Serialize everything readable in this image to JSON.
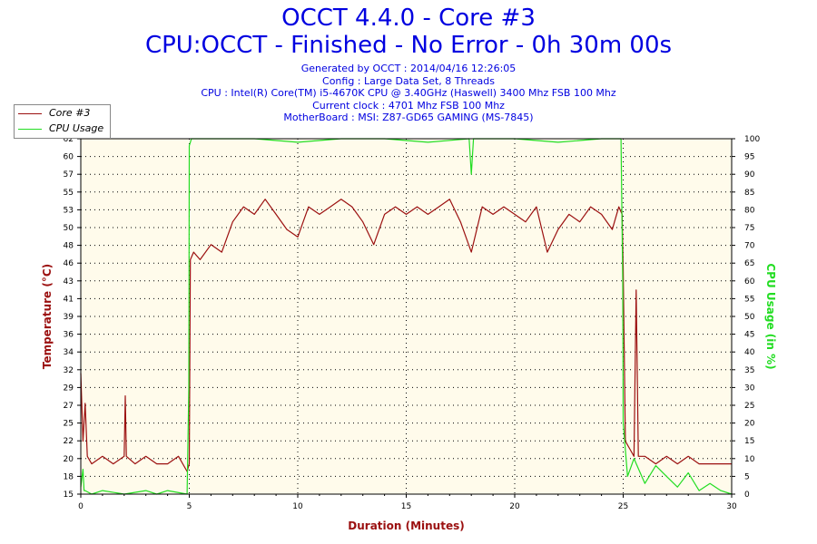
{
  "header": {
    "title_line1": "OCCT 4.4.0 - Core #3",
    "title_line2": "CPU:OCCT - Finished - No Error - 0h 30m 00s",
    "generated": "Generated by OCCT : 2014/04/16 12:26:05",
    "config": "Config : Large Data Set, 8 Threads",
    "cpu": "CPU : Intel(R) Core(TM) i5-4670K CPU @ 3.40GHz (Haswell) 3400 Mhz FSB 100 Mhz",
    "clock": "Current clock : 4701 Mhz FSB 100 Mhz",
    "motherboard": "MotherBoard : MSI: Z87-GD65 GAMING (MS-7845)"
  },
  "chart_data": {
    "type": "line",
    "xlabel": "Duration (Minutes)",
    "ylabel": "Temperature (°C)",
    "y2label": "CPU Usage (in %)",
    "xlim": [
      0,
      30
    ],
    "ylim": [
      15,
      62
    ],
    "y2lim": [
      0,
      100
    ],
    "grid": true,
    "legend_position": "top-left",
    "x_ticks": [
      "0",
      "5",
      "10",
      "15",
      "20",
      "25",
      "30"
    ],
    "y_ticks": [
      "15",
      "18",
      "20",
      "22",
      "25",
      "27",
      "29",
      "32",
      "34",
      "36",
      "39",
      "41",
      "43",
      "46",
      "48",
      "50",
      "53",
      "55",
      "57",
      "60",
      "62"
    ],
    "y2_ticks": [
      "0",
      "5",
      "10",
      "15",
      "20",
      "25",
      "30",
      "35",
      "40",
      "45",
      "50",
      "55",
      "60",
      "65",
      "70",
      "75",
      "80",
      "85",
      "90",
      "95",
      "100"
    ],
    "colors": {
      "temperature": "#9b1010",
      "usage": "#22dd22",
      "plot_bg": "#fffbeb"
    },
    "series": [
      {
        "name": "Core #3",
        "axis": "left",
        "x": [
          0,
          0.1,
          0.2,
          0.3,
          0.5,
          1,
          1.5,
          2,
          2.05,
          2.1,
          2.5,
          3,
          3.5,
          4,
          4.5,
          4.9,
          5.0,
          5.05,
          5.2,
          5.5,
          6,
          6.5,
          7,
          7.5,
          8,
          8.5,
          9,
          9.5,
          10,
          10.5,
          11,
          11.5,
          12,
          12.5,
          13,
          13.5,
          14,
          14.5,
          15,
          15.5,
          16,
          16.5,
          17,
          17.5,
          18,
          18.5,
          19,
          19.5,
          20,
          20.5,
          21,
          21.5,
          22,
          22.5,
          23,
          23.5,
          24,
          24.5,
          24.8,
          24.95,
          25.0,
          25.1,
          25.3,
          25.5,
          25.6,
          25.7,
          26,
          26.5,
          27,
          27.5,
          28,
          28.5,
          29,
          29.5,
          30
        ],
        "values": [
          31,
          22,
          27,
          20,
          19,
          20,
          19,
          20,
          28,
          20,
          19,
          20,
          19,
          19,
          20,
          18,
          19,
          46,
          47,
          46,
          48,
          47,
          51,
          53,
          52,
          54,
          52,
          50,
          49,
          53,
          52,
          53,
          54,
          53,
          51,
          48,
          52,
          53,
          52,
          53,
          52,
          53,
          54,
          51,
          47,
          53,
          52,
          53,
          52,
          51,
          53,
          47,
          50,
          52,
          51,
          53,
          52,
          50,
          53,
          52,
          45,
          22,
          21,
          20,
          42,
          20,
          20,
          19,
          20,
          19,
          20,
          19,
          19,
          19,
          19
        ]
      },
      {
        "name": "CPU Usage",
        "axis": "right",
        "x": [
          0,
          0.1,
          0.15,
          0.2,
          0.5,
          1,
          2,
          3,
          3.5,
          4,
          4.9,
          4.98,
          5.0,
          5.1,
          6,
          8,
          10,
          12,
          14,
          16,
          17.9,
          18.0,
          18.1,
          20,
          22,
          24,
          24.9,
          24.98,
          25.0,
          25.2,
          25.5,
          26,
          26.5,
          27,
          27.5,
          28,
          28.5,
          29,
          29.5,
          30
        ],
        "values": [
          2,
          7,
          1,
          1,
          0,
          1,
          0,
          1,
          0,
          1,
          0,
          30,
          98,
          100,
          100,
          100,
          99,
          100,
          100,
          99,
          100,
          90,
          100,
          100,
          99,
          100,
          100,
          60,
          20,
          5,
          10,
          3,
          8,
          5,
          2,
          6,
          1,
          3,
          1,
          0
        ]
      }
    ]
  }
}
